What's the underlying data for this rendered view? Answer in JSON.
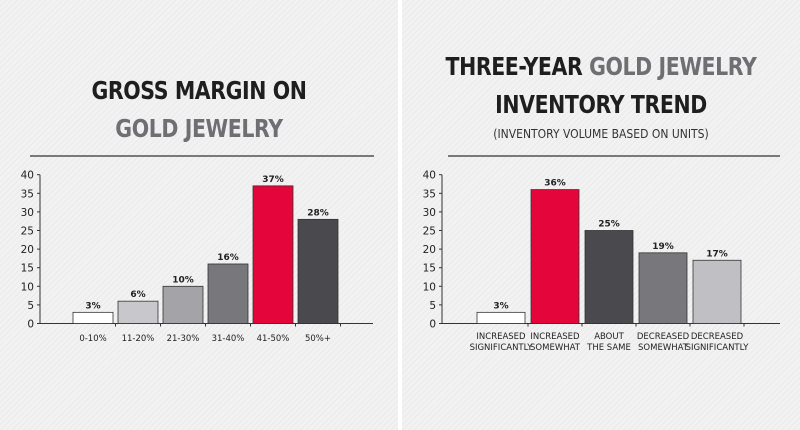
{
  "chart_data": [
    {
      "type": "bar",
      "title_line1": "Gross Margin on",
      "title_line2": "Gold Jewelry",
      "categories": [
        "0-10%",
        "11-20%",
        "21-30%",
        "31-40%",
        "41-50%",
        "50%+"
      ],
      "values": [
        3,
        6,
        10,
        16,
        37,
        28
      ],
      "value_labels": [
        "3%",
        "6%",
        "10%",
        "16%",
        "37%",
        "28%"
      ],
      "bar_colors": [
        "#ffffff",
        "#c8c8cc",
        "#a3a3a8",
        "#77777c",
        "#e4053b",
        "#4a4a4e"
      ],
      "ylim": [
        0,
        40
      ],
      "yticks": [
        0,
        5,
        10,
        15,
        20,
        25,
        30,
        35,
        40
      ],
      "xlabel": "",
      "ylabel": ""
    },
    {
      "type": "bar",
      "title_prefix": "Three-Year",
      "title_highlight": "Gold Jewelry",
      "title_line2": "Inventory Trend",
      "subtitle": "(Inventory volume based on units)",
      "categories": [
        [
          "Increased",
          "significantly"
        ],
        [
          "Increased",
          "somewhat"
        ],
        [
          "About",
          "the same"
        ],
        [
          "Decreased",
          "somewhat"
        ],
        [
          "Decreased",
          "significantly"
        ]
      ],
      "values": [
        3,
        36,
        25,
        19,
        17
      ],
      "value_labels": [
        "3%",
        "36%",
        "25%",
        "19%",
        "17%"
      ],
      "bar_colors": [
        "#ffffff",
        "#e4053b",
        "#4a4a4e",
        "#77777c",
        "#c0c0c4"
      ],
      "ylim": [
        0,
        40
      ],
      "yticks": [
        0,
        5,
        10,
        15,
        20,
        25,
        30,
        35,
        40
      ],
      "xlabel": "",
      "ylabel": ""
    }
  ],
  "colors": {
    "title_dark": "#1e1e1e",
    "title_grey": "#6e6e73",
    "bar_outline": "#333333"
  }
}
